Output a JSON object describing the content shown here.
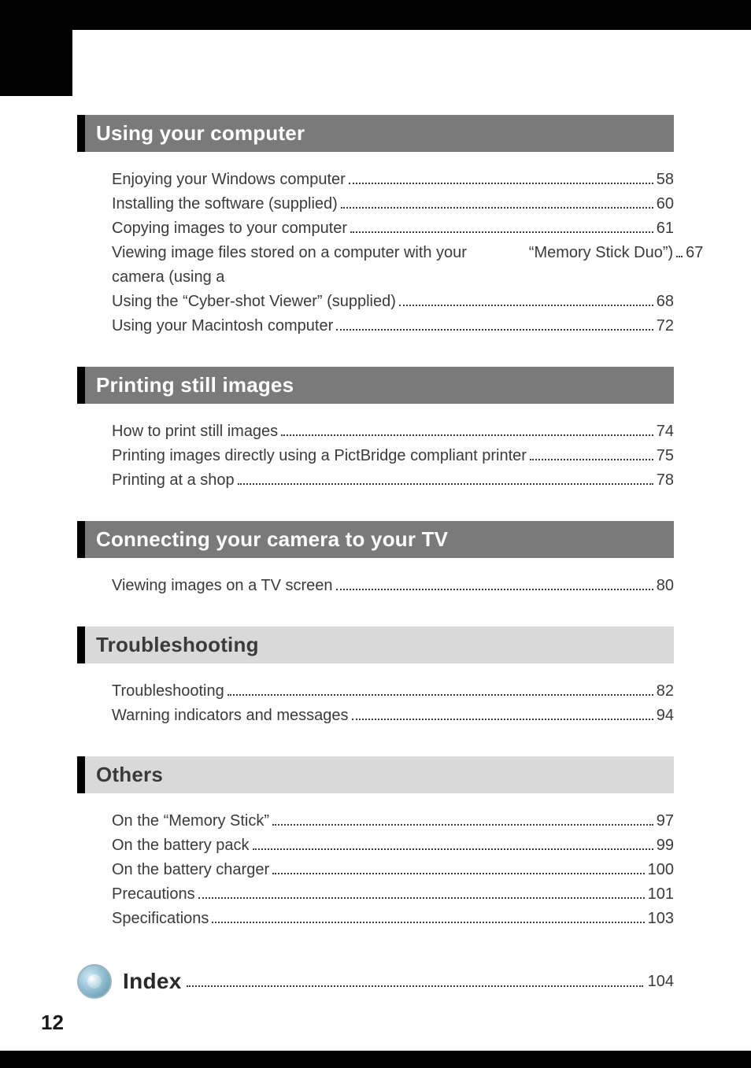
{
  "page_number": "12",
  "colors": {
    "dark_bg": "#7a7a7a",
    "light_bg": "#d9d9d9",
    "text_dark": "#3a3a3a",
    "header_white": "#ffffff",
    "black": "#000000"
  },
  "typography": {
    "header_fontsize_pt": 20,
    "entry_fontsize_pt": 15,
    "index_fontsize_pt": 21
  },
  "sections": [
    {
      "title": "Using your computer",
      "style": "dark",
      "entries": [
        {
          "label": "Enjoying your Windows computer",
          "page": "58"
        },
        {
          "label": "Installing the software (supplied)",
          "page": "60"
        },
        {
          "label": "Copying images to your computer",
          "page": "61"
        },
        {
          "label_top": "Viewing image files stored on a computer with your camera (using a",
          "label_bottom": "“Memory Stick Duo”)",
          "page": "67",
          "wrap": true
        },
        {
          "label": "Using the “Cyber-shot Viewer” (supplied)",
          "page": "68"
        },
        {
          "label": "Using your Macintosh computer",
          "page": "72"
        }
      ]
    },
    {
      "title": "Printing still images",
      "style": "dark",
      "entries": [
        {
          "label": "How to print still images",
          "page": "74"
        },
        {
          "label": "Printing images directly using a PictBridge compliant printer",
          "page": "75"
        },
        {
          "label": "Printing at a shop",
          "page": "78"
        }
      ]
    },
    {
      "title": "Connecting your camera to your TV",
      "style": "dark",
      "entries": [
        {
          "label": "Viewing images on a TV screen",
          "page": "80"
        }
      ]
    },
    {
      "title": "Troubleshooting",
      "style": "light",
      "entries": [
        {
          "label": "Troubleshooting",
          "page": "82"
        },
        {
          "label": "Warning indicators and messages",
          "page": "94"
        }
      ]
    },
    {
      "title": "Others",
      "style": "light",
      "entries": [
        {
          "label": "On the “Memory Stick”",
          "page": "97"
        },
        {
          "label": "On the battery pack",
          "page": "99"
        },
        {
          "label": "On the battery charger",
          "page": "100"
        },
        {
          "label": "Precautions",
          "page": "101"
        },
        {
          "label": "Specifications",
          "page": "103"
        }
      ]
    }
  ],
  "index": {
    "label": "Index",
    "page": "104"
  }
}
